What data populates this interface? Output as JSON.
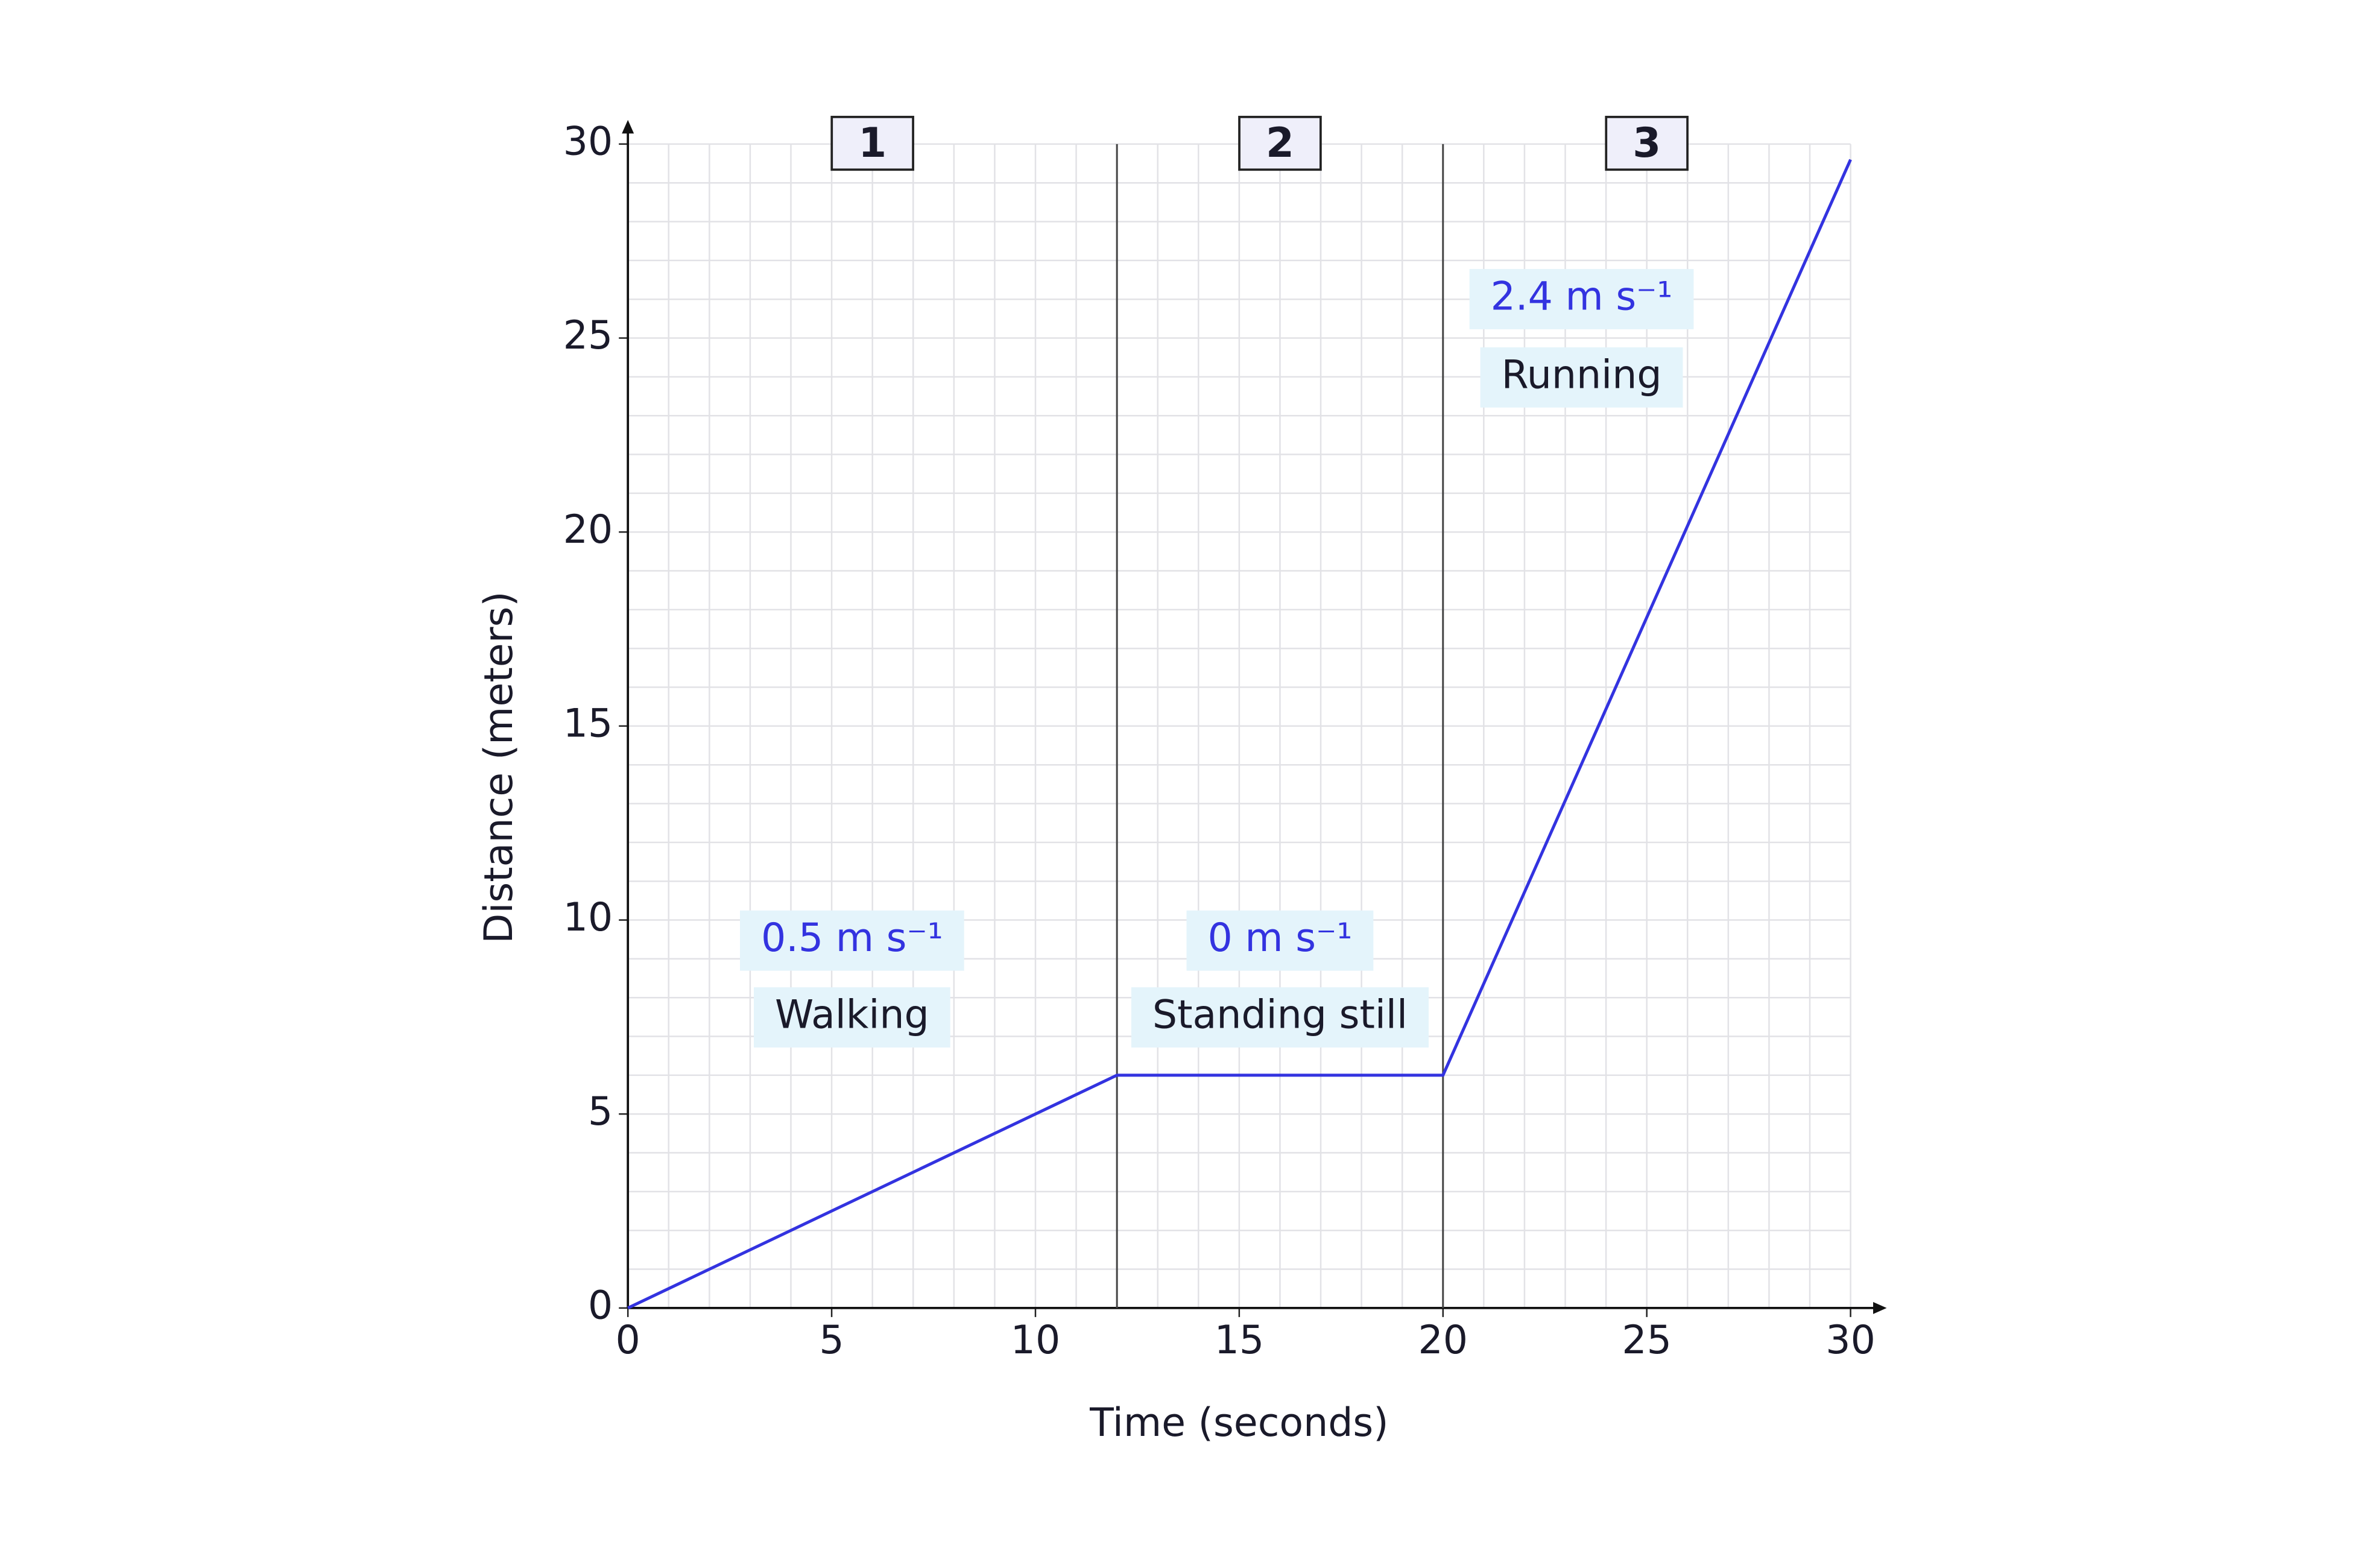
{
  "chart_data": {
    "type": "line",
    "x_label": "Time (seconds)",
    "y_label": "Distance (meters)",
    "x": [
      0,
      12,
      20,
      30
    ],
    "series": [
      {
        "name": "Distance",
        "color": "#3333e0",
        "values": [
          0,
          6,
          6,
          29.6
        ]
      }
    ],
    "xlim": [
      0,
      30
    ],
    "xticks": [
      0,
      5,
      10,
      15,
      20,
      25,
      30
    ],
    "ylim": [
      0,
      30
    ],
    "yticks": [
      0,
      5,
      10,
      15,
      20,
      25,
      30
    ],
    "grid": true,
    "grid_step": 1,
    "regions": [
      {
        "label": "1",
        "start": 0,
        "end": 12,
        "speed": "0.5 m s⁻¹",
        "activity": "Walking"
      },
      {
        "label": "2",
        "start": 12,
        "end": 20,
        "speed": "0 m s⁻¹",
        "activity": "Standing still"
      },
      {
        "label": "3",
        "start": 20,
        "end": 30,
        "speed": "2.4 m s⁻¹",
        "activity": "Running"
      }
    ]
  }
}
